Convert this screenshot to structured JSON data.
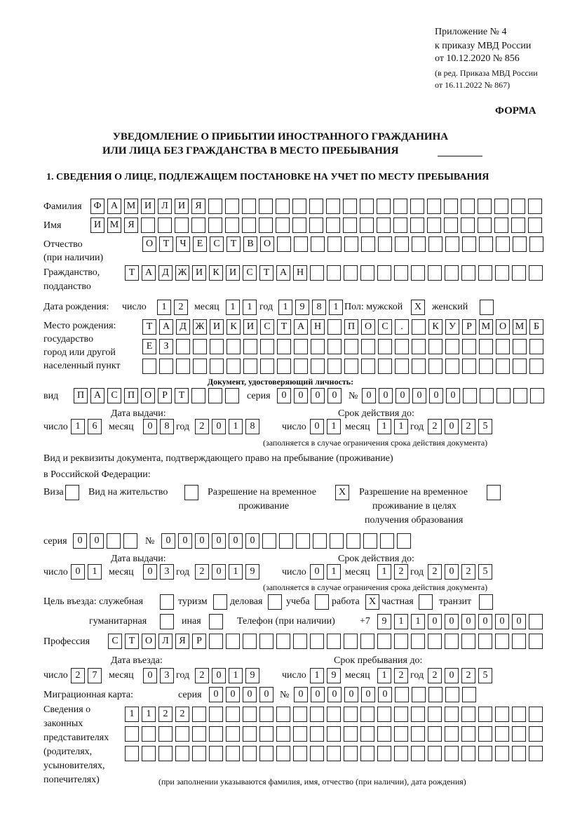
{
  "header": {
    "appendix": "Приложение № 4",
    "order": "к приказу МВД России",
    "order_date": "от 10.12.2020 № 856",
    "edition": "(в ред. Приказа МВД России",
    "edition_date": "от 16.11.2022 № 867)",
    "form": "ФОРМА",
    "title_line1": "УВЕДОМЛЕНИЕ О ПРИБЫТИИ ИНОСТРАННОГО ГРАЖДАНИНА",
    "title_line2": "ИЛИ ЛИЦА БЕЗ ГРАЖДАНСТВА В МЕСТО ПРЕБЫВАНИЯ",
    "section1": "1. СВЕДЕНИЯ О ЛИЦЕ, ПОДЛЕЖАЩЕМ ПОСТАНОВКЕ НА УЧЕТ ПО МЕСТУ ПРЕБЫВАНИЯ"
  },
  "labels": {
    "surname": "Фамилия",
    "name": "Имя",
    "patronymic": "Отчество",
    "patronymic2": "(при наличии)",
    "citizenship": "Гражданство,",
    "citizenship2": "подданство",
    "birth_date": "Дата рождения:",
    "day": "число",
    "month": "месяц",
    "year": "год",
    "sex": "Пол: мужской",
    "female": "женский",
    "birth_place": "Место рождения:",
    "birth_place2": "государство",
    "birth_place3": "город или другой",
    "birth_place4": "населенный пункт",
    "id_doc": "Документ, удостоверяющий личность:",
    "kind": "вид",
    "series": "серия",
    "number": "№",
    "issue_date": "Дата выдачи:",
    "valid_until": "Срок действия до:",
    "valid_note": "(заполняется в случае ограничения срока действия документа)",
    "stay_doc1": "Вид и реквизиты документа, подтверждающего право на пребывание (проживание)",
    "stay_doc2": "в Российской Федерации:",
    "visa": "Виза",
    "residence": "Вид на жительство",
    "trp1": "Разрешение на временное",
    "trp2": "проживание",
    "trp_edu1": "Разрешение на временное",
    "trp_edu2": "проживание в целях",
    "trp_edu3": "получения образования",
    "purpose": "Цель въезда: служебная",
    "tourism": "туризм",
    "business": "деловая",
    "study": "учеба",
    "work": "работа",
    "private": "частная",
    "transit": "транзит",
    "humanitarian": "гуманитарная",
    "other": "иная",
    "phone": "Телефон (при наличии)",
    "phone_prefix": "+7",
    "profession": "Профессия",
    "entry_date": "Дата въезда:",
    "stay_until": "Срок пребывания до:",
    "migration_card": "Миграционная карта:",
    "reps1": "Сведения о",
    "reps2": "законных",
    "reps3": "представителях",
    "reps4": "(родителях,",
    "reps5": "усыновителях,",
    "reps6": "попечителях)",
    "reps_note": "(при заполнении указываются фамилия, имя, отчество (при наличии), дата рождения)"
  },
  "person": {
    "surname": "ФАМИЛИЯ",
    "name": "ИМЯ",
    "patronymic": "ОТЧЕСТВО",
    "citizenship": "ТАДЖИКИСТАН",
    "birth_day": "12",
    "birth_month": "11",
    "birth_year": "1981",
    "sex_male": "X",
    "sex_female": "",
    "birth_place_1": "ТАДЖИКИСТАН ПОС. КУРМОМБ",
    "birth_place_2": "ЕЗ",
    "birth_place_3": ""
  },
  "identity_document": {
    "kind": "ПАСПОРТ",
    "series": "0000",
    "number": "000000",
    "issue_day": "16",
    "issue_month": "08",
    "issue_year": "2018",
    "valid_day": "01",
    "valid_month": "11",
    "valid_year": "2025"
  },
  "stay_document": {
    "visa": "",
    "residence_permit": "",
    "temp_residence": "X",
    "temp_residence_edu": "",
    "series": "00",
    "number": "000000",
    "issue_day": "01",
    "issue_month": "03",
    "issue_year": "2019",
    "valid_day": "01",
    "valid_month": "12",
    "valid_year": "2025"
  },
  "purpose": {
    "official": "",
    "tourism": "",
    "business": "",
    "study": "",
    "work": "X",
    "private": "",
    "transit": "",
    "humanitarian": "",
    "other": ""
  },
  "phone": "911000000",
  "profession": "СТОЛЯР",
  "entry": {
    "entry_day": "27",
    "entry_month": "03",
    "entry_year": "2019",
    "stay_day": "19",
    "stay_month": "12",
    "stay_year": "2025"
  },
  "migration_card": {
    "series": "0000",
    "number": "000000"
  },
  "representatives": {
    "row1": "1122",
    "row2": "",
    "row3": ""
  }
}
